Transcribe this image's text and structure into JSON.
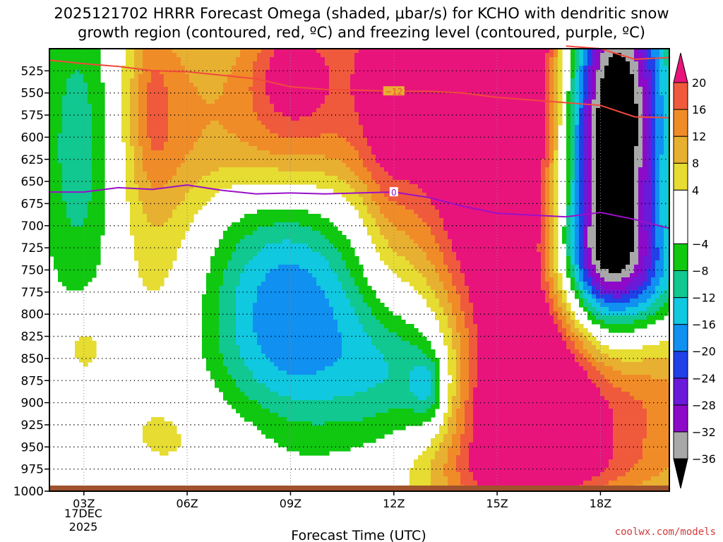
{
  "chart_data": {
    "type": "heatmap",
    "title_line1": "2025121702 HRRR Forecast Omega (shaded, μbar/s) for KCHO with dendritic snow",
    "title_line2": "growth region (contoured, red, ºC) and freezing level (contoured, purple, ºC)",
    "xlabel": "Forecast Time (UTC)",
    "date_label_1": "17DEC",
    "date_label_2": "2025",
    "x_ticks": [
      {
        "t": 3,
        "label": "03Z"
      },
      {
        "t": 6,
        "label": "06Z"
      },
      {
        "t": 9,
        "label": "09Z"
      },
      {
        "t": 12,
        "label": "12Z"
      },
      {
        "t": 15,
        "label": "15Z"
      },
      {
        "t": 18,
        "label": "18Z"
      }
    ],
    "x_range": [
      2,
      20
    ],
    "y_range": [
      500,
      1000
    ],
    "y_ticks": [
      525,
      550,
      575,
      600,
      625,
      650,
      675,
      700,
      725,
      750,
      775,
      800,
      825,
      850,
      875,
      900,
      925,
      950,
      975,
      1000
    ],
    "colorbar": {
      "bounds": [
        -40,
        -36,
        -32,
        -28,
        -24,
        -20,
        -16,
        -12,
        -8,
        -4,
        4,
        8,
        12,
        16,
        20,
        24
      ],
      "colors": [
        "#000000",
        "#a8a8a8",
        "#8c0ac8",
        "#6a1ad8",
        "#2040e8",
        "#1090f0",
        "#10c8e0",
        "#10c890",
        "#10c810",
        "#ffffff",
        "#e6dc32",
        "#e8b030",
        "#f08c28",
        "#f05a3c",
        "#e8147c"
      ],
      "labels": [
        {
          "v": 20,
          "label": "20"
        },
        {
          "v": 16,
          "label": "16"
        },
        {
          "v": 12,
          "label": "12"
        },
        {
          "v": 8,
          "label": "8"
        },
        {
          "v": 4,
          "label": "4"
        },
        {
          "v": -4,
          "label": "−4"
        },
        {
          "v": -8,
          "label": "−8"
        },
        {
          "v": -12,
          "label": "−12"
        },
        {
          "v": -16,
          "label": "−16"
        },
        {
          "v": -20,
          "label": "−20"
        },
        {
          "v": -24,
          "label": "−24"
        },
        {
          "v": -28,
          "label": "−28"
        },
        {
          "v": -32,
          "label": "−32"
        },
        {
          "v": -36,
          "label": "−36"
        }
      ]
    },
    "omega_field": {
      "base": 0,
      "features": [
        {
          "t": 2.9,
          "p": 610,
          "wt": 0.8,
          "wp": 130,
          "amp": -11
        },
        {
          "t": 3.0,
          "p": 835,
          "wt": 0.5,
          "wp": 30,
          "amp": 7
        },
        {
          "t": 5.2,
          "p": 600,
          "wt": 1.0,
          "wp": 170,
          "amp": 9
        },
        {
          "t": 5.0,
          "p": 560,
          "wt": 0.4,
          "wp": 70,
          "amp": 6
        },
        {
          "t": 8.8,
          "p": 560,
          "wt": 2.2,
          "wp": 80,
          "amp": 14
        },
        {
          "t": 9.0,
          "p": 520,
          "wt": 0.8,
          "wp": 50,
          "amp": 10
        },
        {
          "t": 8.6,
          "p": 625,
          "wt": 2.0,
          "wp": 40,
          "amp": 4
        },
        {
          "t": 9.0,
          "p": 800,
          "wt": 1.7,
          "wp": 110,
          "amp": -20
        },
        {
          "t": 12.6,
          "p": 865,
          "wt": 1.4,
          "wp": 60,
          "amp": -16
        },
        {
          "t": 13.0,
          "p": 885,
          "wt": 0.35,
          "wp": 28,
          "amp": -10
        },
        {
          "t": 7.0,
          "p": 940,
          "wt": 2.5,
          "wp": 45,
          "amp": 5
        },
        {
          "t": 14.2,
          "p": 480,
          "wt": 2.4,
          "wp": 160,
          "amp": 26
        },
        {
          "t": 15.4,
          "p": 700,
          "wt": 1.6,
          "wp": 340,
          "amp": 22
        },
        {
          "t": 17.5,
          "p": 905,
          "wt": 2.5,
          "wp": 75,
          "amp": 24
        },
        {
          "t": 16.5,
          "p": 700,
          "wt": 0.9,
          "wp": 150,
          "amp": 4
        },
        {
          "t": 11.8,
          "p": 560,
          "wt": 0.6,
          "wp": 180,
          "amp": 7
        },
        {
          "t": 16.8,
          "p": 975,
          "wt": 3.2,
          "wp": 20,
          "amp": 4
        },
        {
          "t": 18.0,
          "p": 600,
          "wt": 1.1,
          "wp": 160,
          "amp": -42
        },
        {
          "t": 18.1,
          "p": 740,
          "wt": 0.9,
          "wp": 45,
          "amp": -16
        },
        {
          "t": 18.8,
          "p": 560,
          "wt": 0.8,
          "wp": 120,
          "amp": -15
        },
        {
          "t": 19.7,
          "p": 760,
          "wt": 0.7,
          "wp": 40,
          "amp": -8
        }
      ]
    },
    "dgz_contour": {
      "label": "−12",
      "t": [
        2.0,
        3.0,
        4.0,
        5.0,
        6.0,
        7.0,
        8.0,
        9.0,
        10.0,
        11.0,
        12.0,
        13.0,
        14.0,
        15.0,
        16.0,
        17.0,
        18.0,
        19.0,
        20.0
      ],
      "p": [
        513,
        517,
        520,
        525,
        526,
        530,
        534,
        543,
        546,
        547,
        548,
        548,
        550,
        555,
        558,
        561,
        564,
        577,
        578
      ]
    },
    "dgz_upper_contour": {
      "t": [
        17.0,
        18.0,
        19.0,
        20.0
      ],
      "p": [
        497,
        500,
        512,
        510
      ]
    },
    "freezing_level": {
      "label": "0",
      "t": [
        2.0,
        3.0,
        4.0,
        5.0,
        6.0,
        7.0,
        8.0,
        9.0,
        10.0,
        11.0,
        12.0,
        13.0,
        14.0,
        15.0,
        16.0,
        17.0,
        18.0,
        19.0,
        20.0
      ],
      "p": [
        662,
        662,
        657,
        659,
        654,
        660,
        664,
        663,
        664,
        663,
        662,
        668,
        678,
        686,
        688,
        690,
        685,
        693,
        703
      ]
    },
    "terrain_color": "#a0522d",
    "lines": {
      "dgz": "#f04a3c",
      "freezing": "#9a10c8"
    }
  },
  "credit": "coolwx.com/models"
}
